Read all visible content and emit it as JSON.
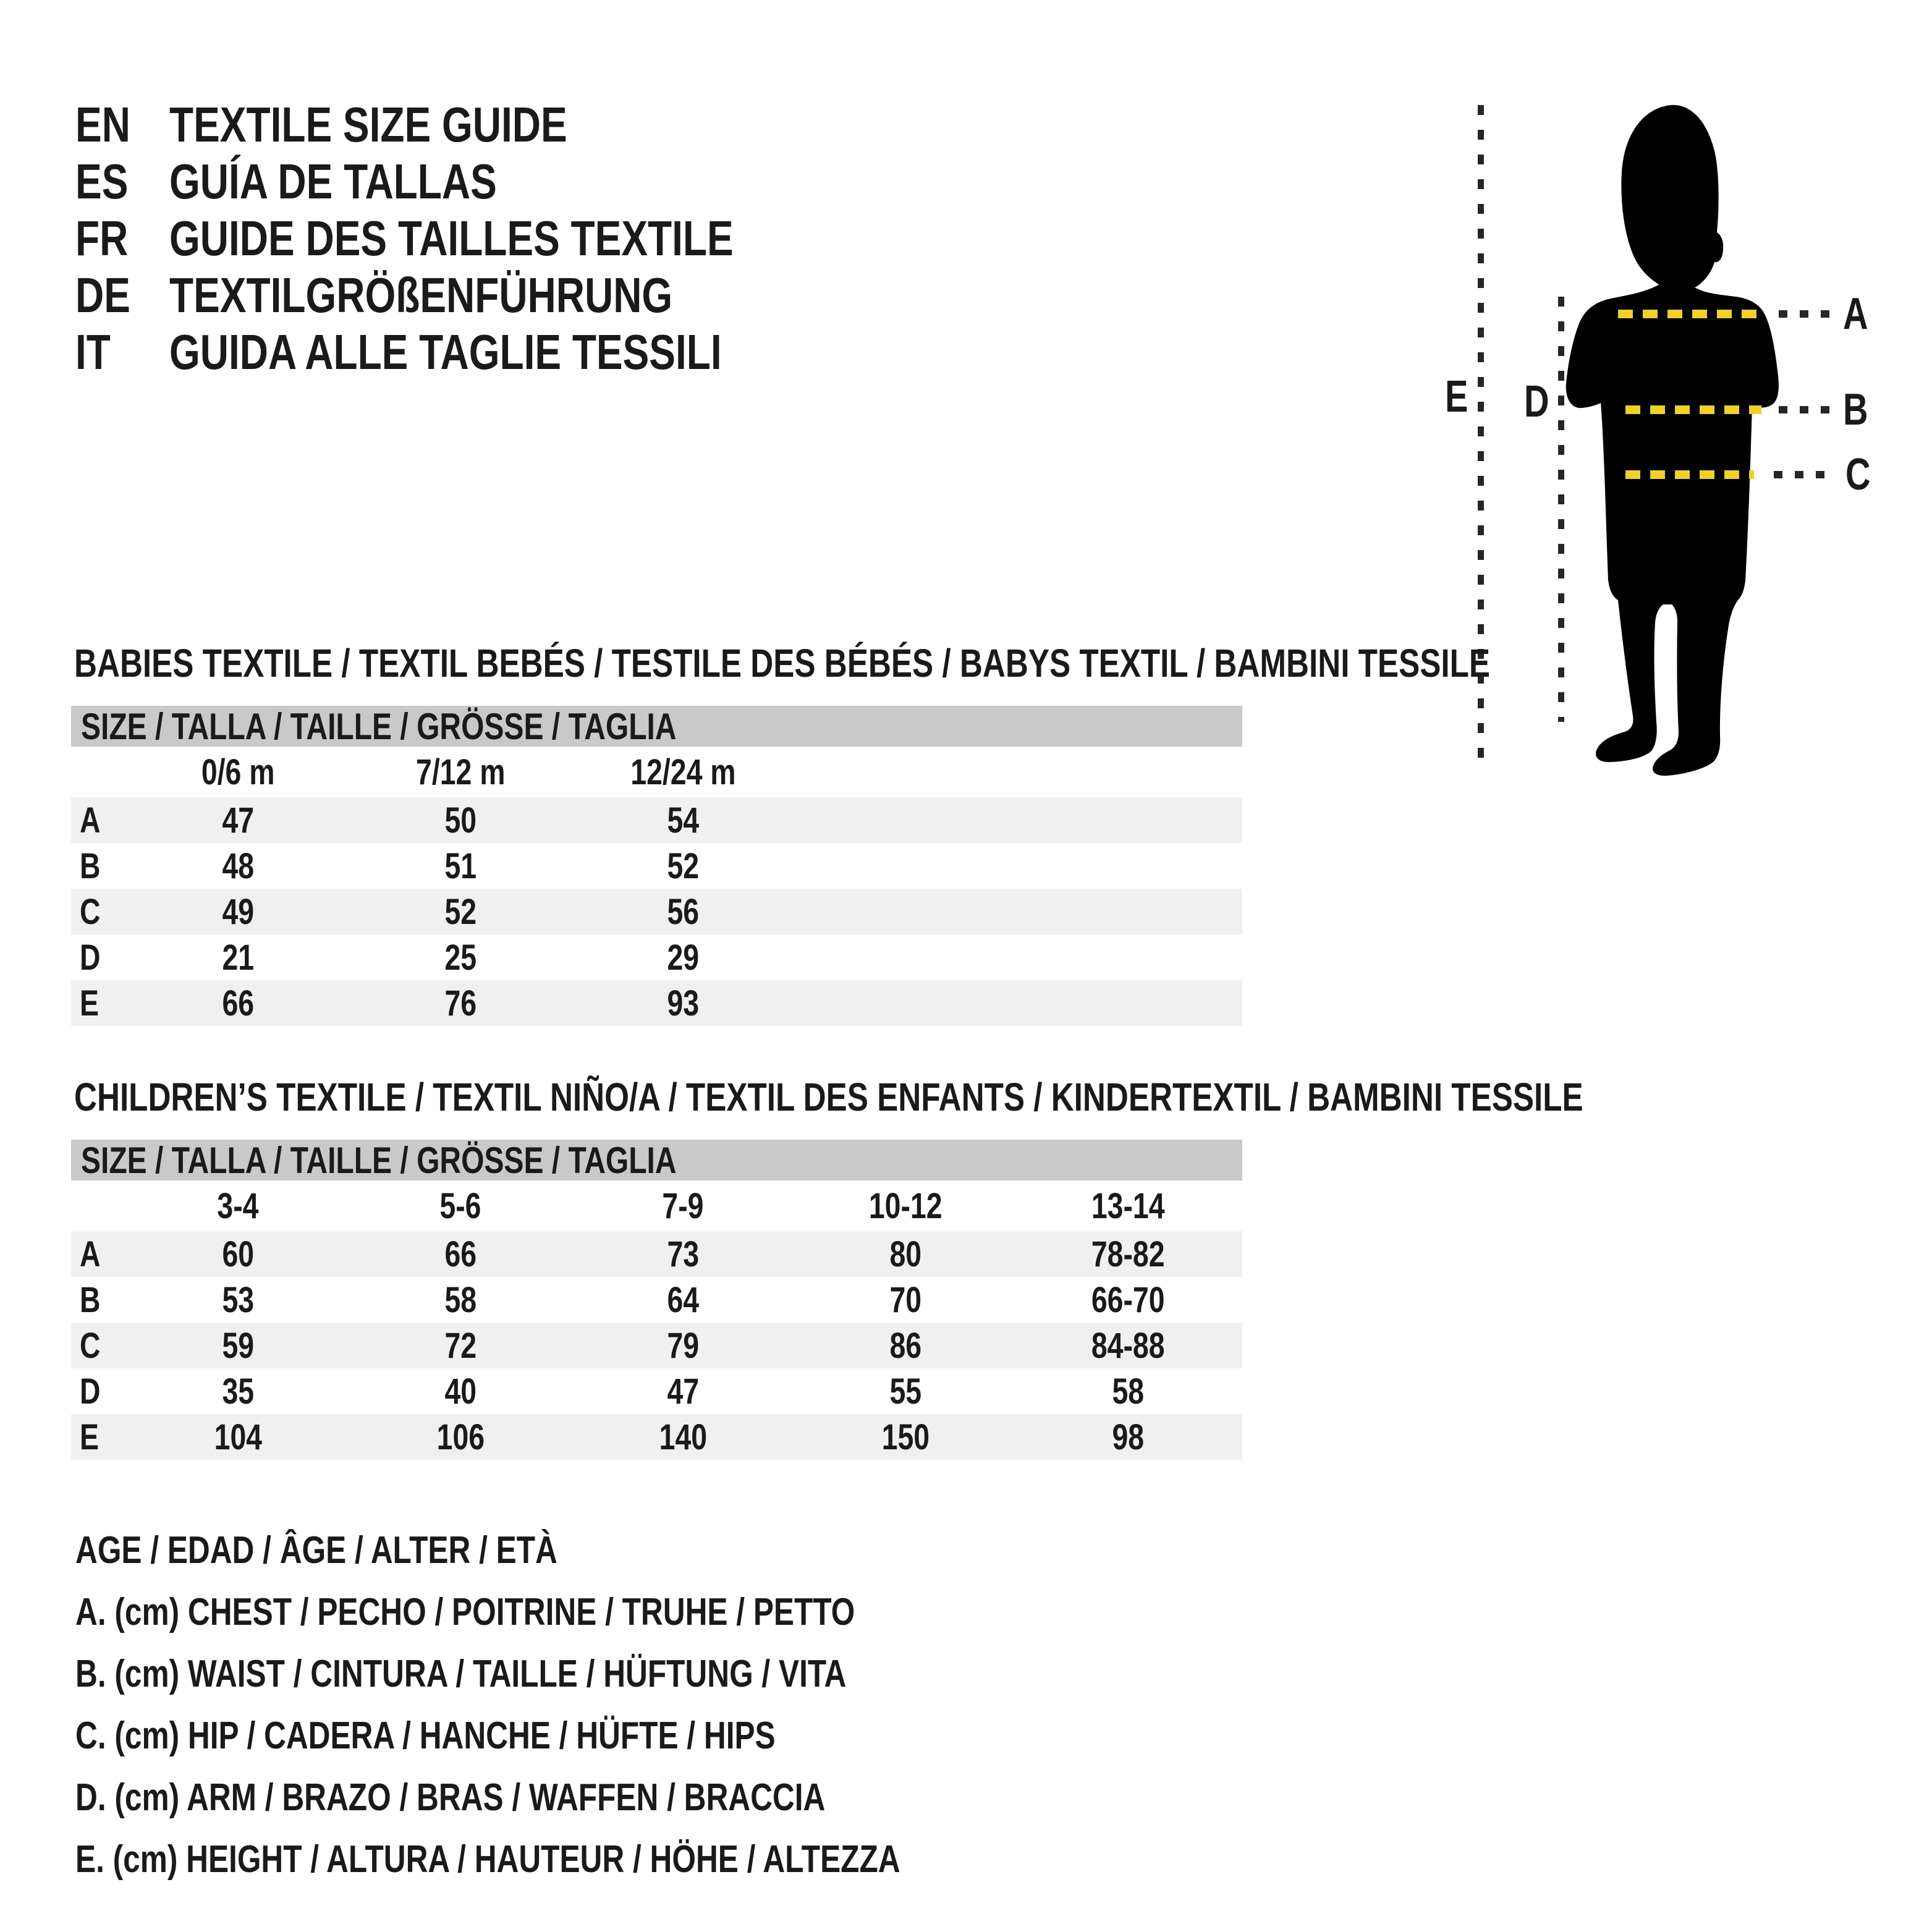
{
  "languages": [
    {
      "code": "EN",
      "title": "TEXTILE SIZE GUIDE"
    },
    {
      "code": "ES",
      "title": "GUÍA DE TALLAS"
    },
    {
      "code": "FR",
      "title": "GUIDE DES TAILLES TEXTILE"
    },
    {
      "code": "DE",
      "title": "TEXTILGRÖßENFÜHRUNG"
    },
    {
      "code": "IT",
      "title": "GUIDA ALLE TAGLIE TESSILI"
    }
  ],
  "figure": {
    "measure_labels": [
      "A",
      "B",
      "C"
    ],
    "arm_label": "D",
    "height_label": "E",
    "accent_yellow": "#F0D02A",
    "dash_dark": "#262626",
    "silhouette_color": "#000000"
  },
  "babies_table": {
    "heading": "BABIES TEXTILE / TEXTIL BEBÉS / TESTILE DES BÉBÉS / BABYS TEXTIL / BAMBINI TESSILE",
    "size_header": "SIZE / TALLA / TAILLE / GRÖSSE / TAGLIA",
    "columns": [
      "0/6 m",
      "7/12 m",
      "12/24 m"
    ],
    "rows": [
      {
        "label": "A",
        "values": [
          "47",
          "50",
          "54"
        ]
      },
      {
        "label": "B",
        "values": [
          "48",
          "51",
          "52"
        ]
      },
      {
        "label": "C",
        "values": [
          "49",
          "52",
          "56"
        ]
      },
      {
        "label": "D",
        "values": [
          "21",
          "25",
          "29"
        ]
      },
      {
        "label": "E",
        "values": [
          "66",
          "76",
          "93"
        ]
      }
    ]
  },
  "children_table": {
    "heading": "CHILDREN’S TEXTILE / TEXTIL NIÑO/A / TEXTIL DES ENFANTS / KINDERTEXTIL / BAMBINI TESSILE",
    "size_header": "SIZE / TALLA / TAILLE / GRÖSSE / TAGLIA",
    "columns": [
      "3-4",
      "5-6",
      "7-9",
      "10-12",
      "13-14"
    ],
    "rows": [
      {
        "label": "A",
        "values": [
          "60",
          "66",
          "73",
          "80",
          "78-82"
        ]
      },
      {
        "label": "B",
        "values": [
          "53",
          "58",
          "64",
          "70",
          "66-70"
        ]
      },
      {
        "label": "C",
        "values": [
          "59",
          "72",
          "79",
          "86",
          "84-88"
        ]
      },
      {
        "label": "D",
        "values": [
          "35",
          "40",
          "47",
          "55",
          "58"
        ]
      },
      {
        "label": "E",
        "values": [
          "104",
          "106",
          "140",
          "150",
          "98"
        ]
      }
    ]
  },
  "legend": [
    "AGE / EDAD / ÂGE / ALTER / ETÀ",
    "A. (cm) CHEST / PECHO / POITRINE / TRUHE / PETTO",
    "B. (cm) WAIST / CINTURA / TAILLE / HÜFTUNG / VITA",
    "C. (cm) HIP / CADERA / HANCHE / HÜFTE / HIPS",
    "D. (cm) ARM / BRAZO / BRAS / WAFFEN / BRACCIA",
    "E. (cm) HEIGHT / ALTURA / HAUTEUR / HÖHE / ALTEZZA"
  ],
  "colors": {
    "band_gray": "#c9c9c9",
    "stripe_gray": "#f0f0f0",
    "text_ink": "#1a1a1a"
  }
}
